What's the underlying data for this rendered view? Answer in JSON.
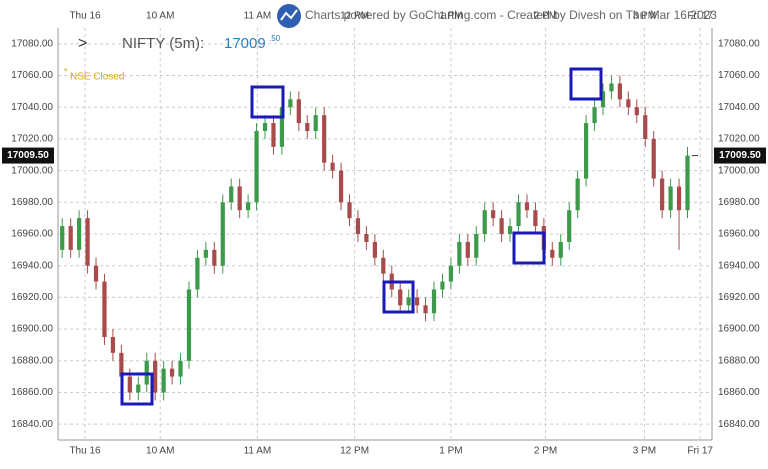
{
  "chart_data": {
    "type": "candlestick",
    "symbol": "NIFTY (5m):",
    "price_main": "17009",
    "price_decimals": ".50",
    "status_marker": "*",
    "status": "NSE Closed",
    "watermark": "Charts powered by GoCharting.com - Created by Divesh on Thu Mar 16 2023",
    "price_label": {
      "value": 17009.5,
      "label": "17009.50"
    },
    "up_color": "#3d9a4a",
    "down_color": "#a94b4b",
    "ylim": [
      16830,
      17090
    ],
    "yticks": [
      {
        "value": 16840,
        "label": "16840.00"
      },
      {
        "value": 16860,
        "label": "16860.00"
      },
      {
        "value": 16880,
        "label": "16880.00"
      },
      {
        "value": 16900,
        "label": "16900.00"
      },
      {
        "value": 16920,
        "label": "16920.00"
      },
      {
        "value": 16940,
        "label": "16940.00"
      },
      {
        "value": 16960,
        "label": "16960.00"
      },
      {
        "value": 16980,
        "label": "16980.00"
      },
      {
        "value": 17000,
        "label": "17000.00"
      },
      {
        "value": 17020,
        "label": "17020.00"
      },
      {
        "value": 17040,
        "label": "17040.00"
      },
      {
        "value": 17060,
        "label": "17060.00"
      },
      {
        "value": 17080,
        "label": "17080.00"
      }
    ],
    "xlim": [
      -0.5,
      76.9
    ],
    "xticks": [
      {
        "value": 2.7,
        "label": "Thu 16"
      },
      {
        "value": 11.6,
        "label": "10 AM"
      },
      {
        "value": 23.1,
        "label": "11 AM"
      },
      {
        "value": 34.6,
        "label": "12 PM"
      },
      {
        "value": 46,
        "label": "1 PM"
      },
      {
        "value": 57.2,
        "label": "2 PM"
      },
      {
        "value": 68.9,
        "label": "3 PM"
      },
      {
        "value": 75.5,
        "label": "Fri 17"
      }
    ],
    "grid": true,
    "open": [
      16950,
      16965,
      16950,
      16970,
      16940,
      16930,
      16895,
      16885,
      16870,
      16860,
      16865,
      16880,
      16860,
      16875,
      16870,
      16880,
      16925,
      16945,
      16950,
      16940,
      16980,
      16990,
      16975,
      16980,
      17025,
      17030,
      17015,
      17040,
      17045,
      17030,
      17025,
      17035,
      17005,
      17000,
      16980,
      16970,
      16960,
      16955,
      16945,
      16935,
      16925,
      16915,
      16920,
      16915,
      16910,
      16925,
      16930,
      16940,
      16955,
      16945,
      16960,
      16975,
      16970,
      16960,
      16965,
      16980,
      16975,
      16965,
      16950,
      16945,
      16955,
      16975,
      16995,
      17030,
      17040,
      17050,
      17055,
      17045,
      17040,
      17035,
      17020,
      16995,
      16975,
      16990,
      16975
    ],
    "high": [
      16970,
      16970,
      16975,
      16975,
      16945,
      16935,
      16900,
      16890,
      16875,
      16870,
      16885,
      16885,
      16880,
      16880,
      16885,
      16930,
      16950,
      16955,
      16955,
      16985,
      16995,
      16995,
      16985,
      17030,
      17035,
      17035,
      17045,
      17050,
      17050,
      17035,
      17040,
      17040,
      17010,
      17005,
      16985,
      16975,
      16965,
      16960,
      16950,
      16940,
      16930,
      16925,
      16925,
      16920,
      16930,
      16935,
      16945,
      16960,
      16960,
      16965,
      16980,
      16980,
      16975,
      16970,
      16985,
      16985,
      16980,
      16970,
      16955,
      16960,
      16980,
      17000,
      17035,
      17045,
      17055,
      17060,
      17060,
      17050,
      17045,
      17040,
      17025,
      17000,
      16995,
      16995,
      17015
    ],
    "low": [
      16945,
      16945,
      16945,
      16935,
      16925,
      16890,
      16880,
      16865,
      16855,
      16855,
      16860,
      16855,
      16855,
      16865,
      16865,
      16875,
      16920,
      16940,
      16935,
      16935,
      16975,
      16970,
      16970,
      16975,
      17020,
      17010,
      17010,
      17035,
      17025,
      17020,
      17020,
      17000,
      16995,
      16975,
      16965,
      16955,
      16950,
      16940,
      16930,
      16920,
      16910,
      16910,
      16910,
      16905,
      16905,
      16920,
      16925,
      16935,
      16940,
      16940,
      16955,
      16965,
      16955,
      16955,
      16960,
      16970,
      16960,
      16945,
      16940,
      16940,
      16950,
      16970,
      16990,
      17025,
      17035,
      17045,
      17040,
      17035,
      17030,
      17015,
      16990,
      16970,
      16970,
      16950,
      16970
    ],
    "close": [
      16965,
      16950,
      16970,
      16940,
      16930,
      16895,
      16885,
      16870,
      16860,
      16865,
      16880,
      16860,
      16875,
      16870,
      16880,
      16925,
      16945,
      16950,
      16940,
      16980,
      16990,
      16975,
      16980,
      17025,
      17030,
      17015,
      17040,
      17045,
      17030,
      17025,
      17035,
      17005,
      17000,
      16980,
      16970,
      16960,
      16955,
      16945,
      16935,
      16925,
      16915,
      16920,
      16915,
      16910,
      16925,
      16930,
      16940,
      16955,
      16945,
      16960,
      16975,
      16970,
      16960,
      16965,
      16980,
      16975,
      16965,
      16950,
      16945,
      16955,
      16975,
      16995,
      17030,
      17040,
      17050,
      17055,
      17045,
      17040,
      17035,
      17020,
      16995,
      16975,
      16990,
      16975,
      17009.5
    ]
  }
}
